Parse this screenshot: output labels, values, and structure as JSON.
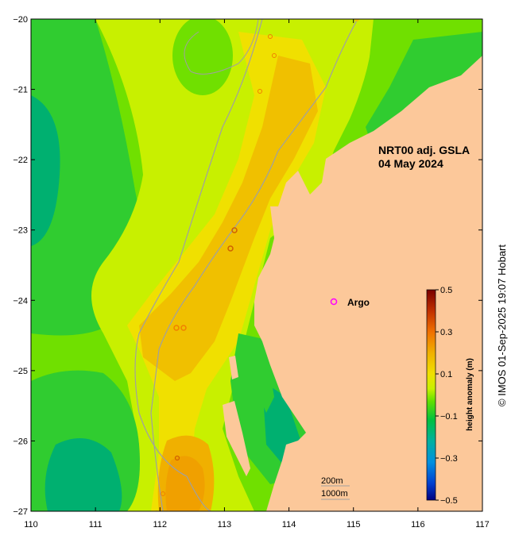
{
  "title_line1": "NRT00 adj. GSLA",
  "title_line2": "04 May 2024",
  "legend_marker_label": "Argo",
  "depth_legend": [
    "200m",
    "1000m"
  ],
  "credit": "© IMOS 01-Sep-2025 19:07 Hobart",
  "colorbar": {
    "label": "height anomaly (m)",
    "min": -0.5,
    "max": 0.5,
    "tick_values": [
      0.5,
      0.3,
      0.1,
      -0.1,
      -0.3,
      -0.5
    ],
    "tick_labels": [
      "0.5",
      "0.3",
      "0.1",
      "−0.1",
      "−0.3",
      "−0.5"
    ],
    "colors": [
      "#7a0000",
      "#c03000",
      "#f07000",
      "#f0b000",
      "#f0e000",
      "#c8f000",
      "#60e000",
      "#00c040",
      "#00b0a0",
      "#0090e0",
      "#0040d0",
      "#000080"
    ]
  },
  "axes": {
    "x_ticks": [
      110,
      111,
      112,
      113,
      114,
      115,
      116,
      117
    ],
    "x_tick_labels": [
      "110",
      "111",
      "112",
      "113",
      "114",
      "115",
      "116",
      "117"
    ],
    "y_ticks": [
      -20,
      -21,
      -22,
      -23,
      -24,
      -25,
      -26,
      -27
    ],
    "y_tick_labels": [
      "−20",
      "−21",
      "−22",
      "−23",
      "−24",
      "−25",
      "−26",
      "−27"
    ],
    "xlim": [
      110,
      117
    ],
    "ylim": [
      -27,
      -20
    ]
  },
  "colors": {
    "land": "#fcc89a",
    "deep_green": "#00b070",
    "green": "#30cc30",
    "light_green": "#70e000",
    "yellow_green": "#c8f000",
    "yellow": "#f0e000",
    "amber": "#f0c000",
    "orange": "#f0a000",
    "argo": "#ff00ff"
  }
}
